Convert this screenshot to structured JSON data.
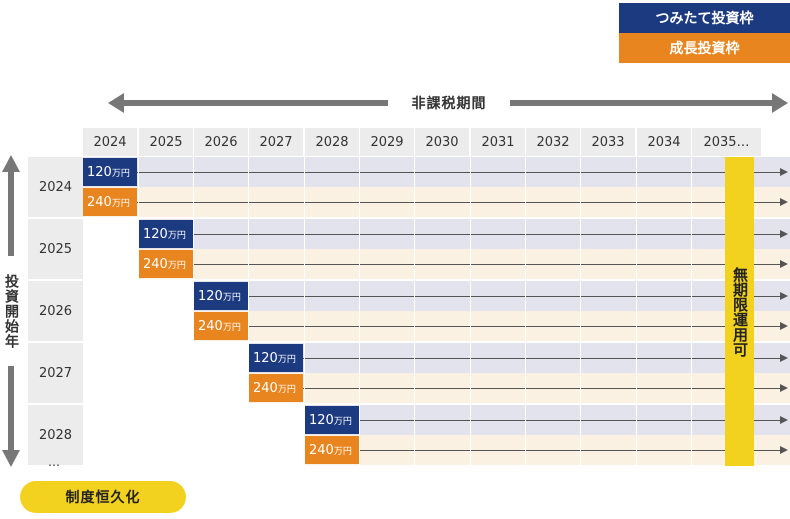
{
  "legend": {
    "tsumitate": "つみたて投資枠",
    "seicho": "成長投資枠",
    "tsumitate_color": "#1c3a7f",
    "seicho_color": "#e8851e"
  },
  "period_label": "非課税期間",
  "year_headers": [
    "2024",
    "2025",
    "2026",
    "2027",
    "2028",
    "2029",
    "2030",
    "2031",
    "2032",
    "2033",
    "2034",
    "2035…"
  ],
  "rows": [
    {
      "year": "2024",
      "blue_amount": "120",
      "orange_amount": "240"
    },
    {
      "year": "2025",
      "blue_amount": "120",
      "orange_amount": "240"
    },
    {
      "year": "2026",
      "blue_amount": "120",
      "orange_amount": "240"
    },
    {
      "year": "2027",
      "blue_amount": "120",
      "orange_amount": "240"
    },
    {
      "year": "2028",
      "blue_amount": "120",
      "orange_amount": "240"
    }
  ],
  "unit": "万円",
  "unlimited_label": "無期限運用可",
  "start_year_label": "投資開始年",
  "ellipsis": "…",
  "permanent_label": "制度恒久化",
  "highlight_color": "#f2d21f"
}
